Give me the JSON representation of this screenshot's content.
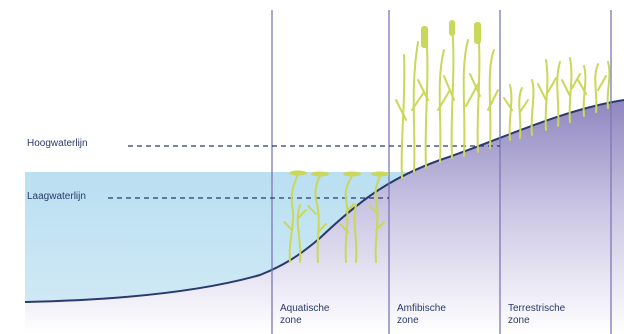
{
  "lines": {
    "high_water": "Hoogwaterlijn",
    "low_water": "Laagwaterlijn"
  },
  "zones": [
    {
      "name": "Aquatische",
      "suffix": "zone"
    },
    {
      "name": "Amfibische",
      "suffix": "zone"
    },
    {
      "name": "Terrestrische",
      "suffix": "zone"
    }
  ],
  "colors": {
    "water": "#bfe2f2",
    "ground": "#a8a3cd",
    "outline": "#2b3a6b",
    "plants": "#c9d85a"
  }
}
